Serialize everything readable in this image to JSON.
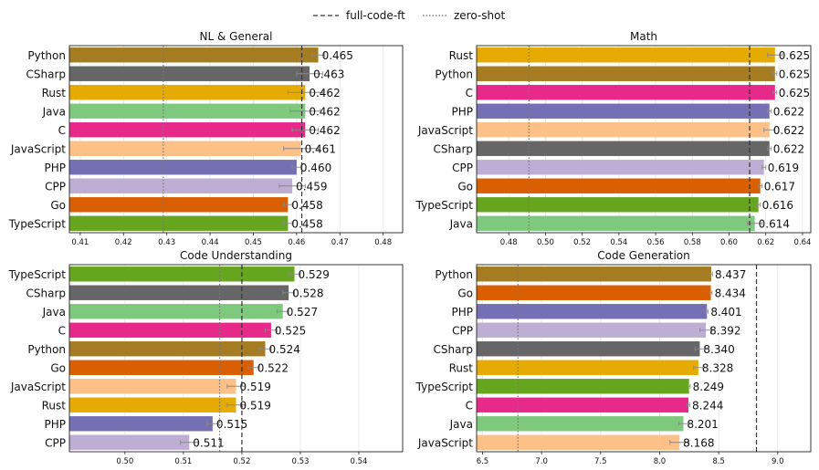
{
  "legend": {
    "full_label": "full-code-ft",
    "zero_label": "zero-shot"
  },
  "colors": {
    "Python": "#a67c22",
    "CSharp": "#666666",
    "Rust": "#e6ab02",
    "Java": "#7fc97f",
    "C": "#e7298a",
    "JavaScript": "#fdc086",
    "PHP": "#7570b3",
    "CPP": "#beaed4",
    "Go": "#d95f02",
    "TypeScript": "#66a61e"
  },
  "chart_data": [
    {
      "type": "bar",
      "orientation": "horizontal",
      "title": "NL & General",
      "categories": [
        "Python",
        "CSharp",
        "Rust",
        "Java",
        "C",
        "JavaScript",
        "PHP",
        "CPP",
        "Go",
        "TypeScript"
      ],
      "values": [
        0.465,
        0.463,
        0.462,
        0.462,
        0.462,
        0.461,
        0.46,
        0.459,
        0.458,
        0.458
      ],
      "labels": [
        "0.465",
        "0.463",
        "0.462",
        "0.462",
        "0.462",
        "0.461",
        "0.460",
        "0.459",
        "0.458",
        "0.458"
      ],
      "errors": [
        0.0015,
        0.003,
        0.004,
        0.0035,
        0.003,
        0.004,
        0.001,
        0.003,
        0.001,
        0.001
      ],
      "xlim": [
        0.4075,
        0.4845
      ],
      "ticks": [
        0.41,
        0.42,
        0.43,
        0.44,
        0.45,
        0.46,
        0.47,
        0.48
      ],
      "tick_labels": [
        "0.41",
        "0.42",
        "0.43",
        "0.44",
        "0.45",
        "0.46",
        "0.47",
        "0.48"
      ],
      "full_code_ft": 0.4612,
      "zero_shot": 0.4292
    },
    {
      "type": "bar",
      "orientation": "horizontal",
      "title": "Math",
      "categories": [
        "Rust",
        "Python",
        "C",
        "PHP",
        "JavaScript",
        "CSharp",
        "CPP",
        "Go",
        "TypeScript",
        "Java"
      ],
      "values": [
        0.625,
        0.625,
        0.625,
        0.622,
        0.622,
        0.622,
        0.619,
        0.617,
        0.616,
        0.614
      ],
      "labels": [
        "0.625",
        "0.625",
        "0.625",
        "0.622",
        "0.622",
        "0.622",
        "0.619",
        "0.617",
        "0.616",
        "0.614"
      ],
      "errors": [
        0.004,
        0.001,
        0.001,
        0.001,
        0.003,
        0.001,
        0.001,
        0.001,
        0.001,
        0.004
      ],
      "xlim": [
        0.4625,
        0.6445
      ],
      "ticks": [
        0.48,
        0.5,
        0.52,
        0.54,
        0.56,
        0.58,
        0.6,
        0.62,
        0.64
      ],
      "tick_labels": [
        "0.48",
        "0.50",
        "0.52",
        "0.54",
        "0.56",
        "0.58",
        "0.60",
        "0.62",
        "0.64"
      ],
      "full_code_ft": 0.6112,
      "zero_shot": 0.491
    },
    {
      "type": "bar",
      "orientation": "horizontal",
      "title": "Code Understanding",
      "categories": [
        "TypeScript",
        "CSharp",
        "Java",
        "C",
        "Python",
        "Go",
        "JavaScript",
        "Rust",
        "PHP",
        "CPP"
      ],
      "values": [
        0.529,
        0.528,
        0.527,
        0.525,
        0.524,
        0.522,
        0.519,
        0.519,
        0.515,
        0.511
      ],
      "labels": [
        "0.529",
        "0.528",
        "0.527",
        "0.525",
        "0.524",
        "0.522",
        "0.519",
        "0.519",
        "0.515",
        "0.511"
      ],
      "errors": [
        0.001,
        0.001,
        0.001,
        0.001,
        0.001,
        0.001,
        0.0015,
        0.0015,
        0.001,
        0.0015
      ],
      "xlim": [
        0.4905,
        0.5475
      ],
      "ticks": [
        0.5,
        0.51,
        0.52,
        0.53,
        0.54
      ],
      "tick_labels": [
        "0.50",
        "0.51",
        "0.52",
        "0.53",
        "0.54"
      ],
      "full_code_ft": 0.52,
      "zero_shot": 0.5162
    },
    {
      "type": "bar",
      "orientation": "horizontal",
      "title": "Code Generation",
      "categories": [
        "Python",
        "Go",
        "PHP",
        "CPP",
        "CSharp",
        "Rust",
        "TypeScript",
        "C",
        "Java",
        "JavaScript"
      ],
      "values": [
        8.437,
        8.434,
        8.401,
        8.392,
        8.34,
        8.328,
        8.249,
        8.244,
        8.201,
        8.168
      ],
      "labels": [
        "8.437",
        "8.434",
        "8.401",
        "8.392",
        "8.340",
        "8.328",
        "8.249",
        "8.244",
        "8.201",
        "8.168"
      ],
      "errors": [
        0.01,
        0.01,
        0.01,
        0.05,
        0.04,
        0.04,
        0.01,
        0.01,
        0.04,
        0.08
      ],
      "xlim": [
        6.45,
        9.28
      ],
      "ticks": [
        6.5,
        7.0,
        7.5,
        8.0,
        8.5,
        9.0
      ],
      "tick_labels": [
        "6.5",
        "7.0",
        "7.5",
        "8.0",
        "8.5",
        "9.0"
      ],
      "full_code_ft": 8.82,
      "zero_shot": 6.8
    }
  ]
}
